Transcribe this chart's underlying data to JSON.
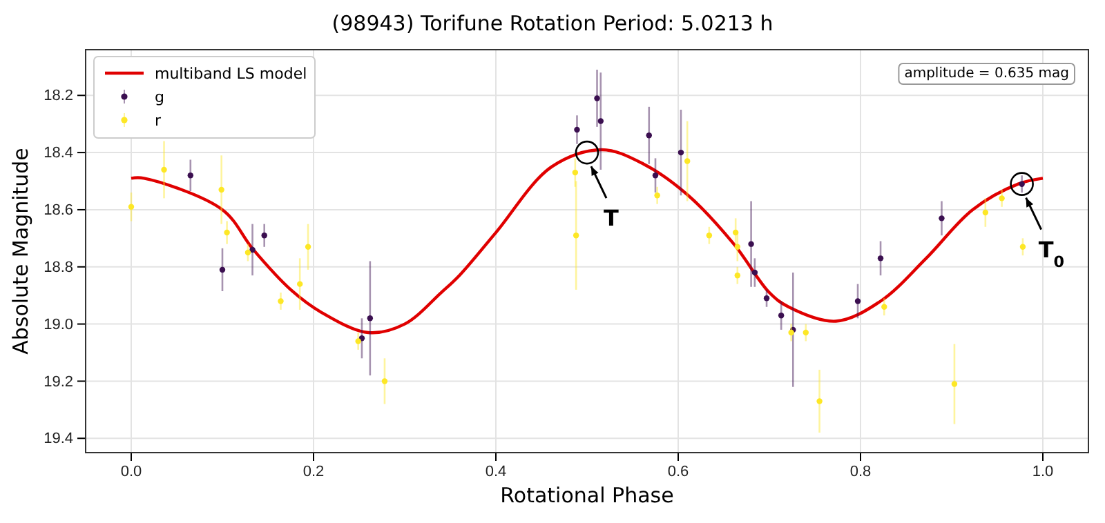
{
  "chart_data": {
    "type": "scatter",
    "title": "(98943) Torifune Rotation Period: 5.0213 h",
    "xlabel": "Rotational Phase",
    "ylabel": "Absolute Magnitude",
    "xlim": [
      -0.05,
      1.05
    ],
    "xticks": [
      {
        "value": 0,
        "label": "0.0"
      },
      {
        "value": 0.2,
        "label": "0.2"
      },
      {
        "value": 0.4,
        "label": "0.4"
      },
      {
        "value": 0.6,
        "label": "0.6"
      },
      {
        "value": 0.8,
        "label": "0.8"
      },
      {
        "value": 1,
        "label": "1.0"
      }
    ],
    "ylim": [
      19.45,
      18.04
    ],
    "yticks": [
      18.2,
      18.4,
      18.6,
      18.8,
      {
        "value": 19,
        "label": "19.0"
      },
      19.2,
      19.4
    ],
    "grid": true,
    "legend": "top left",
    "marker": "circle",
    "annotations": [
      {
        "text": "T",
        "x": 0.5,
        "y": 18.4
      },
      {
        "text": "T$_{0}$",
        "x": 0.977,
        "y": 18.51
      },
      "amplitude = 0.635 mag"
    ],
    "series": [
      {
        "name": "multiband LS model",
        "type": "line",
        "color": "#e00000",
        "line_style": "solid",
        "marker": "none",
        "x": [
          0,
          0.014,
          0.1,
          0.134,
          0.175,
          0.209,
          0.26,
          0.3,
          0.34,
          0.36,
          0.4,
          0.461,
          0.516,
          0.562,
          0.611,
          0.661,
          0.7,
          0.721,
          0.773,
          0.822,
          0.872,
          0.923,
          0.973,
          1
        ],
        "values": [
          18.49,
          18.49,
          18.6,
          18.74,
          18.88,
          18.96,
          19.03,
          19,
          18.89,
          18.83,
          18.68,
          18.45,
          18.39,
          18.44,
          18.55,
          18.72,
          18.89,
          18.94,
          18.99,
          18.92,
          18.77,
          18.6,
          18.51,
          18.49
        ]
      },
      {
        "name": "g",
        "color": "#3b0f50",
        "x": [
          0.065,
          0.1,
          0.133,
          0.146,
          0.253,
          0.262,
          0.489,
          0.511,
          0.515,
          0.568,
          0.575,
          0.603,
          0.68,
          0.684,
          0.697,
          0.713,
          0.726,
          0.797,
          0.822,
          0.889,
          0.977
        ],
        "values": [
          18.48,
          18.81,
          18.74,
          18.69,
          19.05,
          18.98,
          18.32,
          18.21,
          18.29,
          18.34,
          18.48,
          18.4,
          18.72,
          18.82,
          18.91,
          18.97,
          19.02,
          18.92,
          18.77,
          18.63,
          18.51
        ],
        "errors": [
          0.055,
          0.075,
          0.09,
          0.04,
          0.07,
          0.2,
          0.05,
          0.1,
          0.17,
          0.1,
          0.06,
          0.15,
          0.15,
          0.05,
          0.03,
          0.05,
          0.2,
          0.06,
          0.06,
          0.06,
          0.03
        ]
      },
      {
        "name": "r",
        "color": "#fde725",
        "x": [
          0,
          0.036,
          0.099,
          0.105,
          0.128,
          0.164,
          0.185,
          0.194,
          0.249,
          0.278,
          0.487,
          0.488,
          0.577,
          0.61,
          0.634,
          0.663,
          0.665,
          0.665,
          0.724,
          0.74,
          0.755,
          0.826,
          0.903,
          0.937,
          0.955,
          0.978
        ],
        "values": [
          18.59,
          18.46,
          18.53,
          18.68,
          18.75,
          18.92,
          18.86,
          18.73,
          19.06,
          19.2,
          18.47,
          18.69,
          18.55,
          18.43,
          18.69,
          18.68,
          18.73,
          18.83,
          19.03,
          19.03,
          19.27,
          18.94,
          19.21,
          18.61,
          18.56,
          18.73
        ],
        "errors": [
          0.05,
          0.1,
          0.12,
          0.04,
          0.03,
          0.03,
          0.09,
          0.08,
          0.03,
          0.08,
          0.05,
          0.19,
          0.03,
          0.14,
          0.03,
          0.05,
          0.05,
          0.03,
          0.03,
          0.03,
          0.11,
          0.03,
          0.14,
          0.05,
          0.03,
          0.03
        ]
      }
    ]
  }
}
